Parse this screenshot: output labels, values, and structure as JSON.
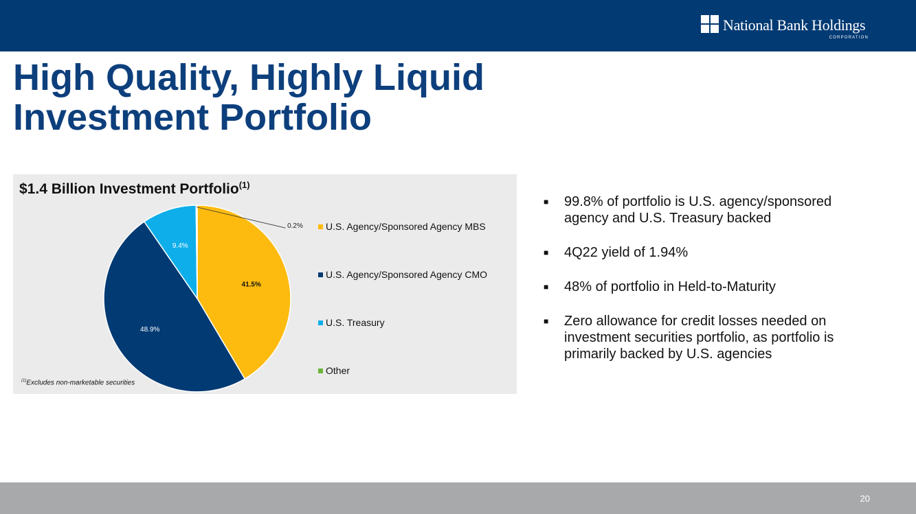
{
  "header": {
    "logo_name": "National Bank Holdings",
    "logo_sub": "CORPORATION"
  },
  "title": {
    "line1": "High Quality, Highly Liquid",
    "line2": "Investment Portfolio"
  },
  "chart_data": {
    "type": "pie",
    "title": "$1.4 Billion Investment Portfolio",
    "title_superscript": "(1)",
    "categories": [
      "U.S. Agency/Sponsored Agency MBS",
      "U.S. Agency/Sponsored Agency CMO",
      "U.S. Treasury",
      "Other"
    ],
    "values": [
      41.5,
      48.9,
      9.4,
      0.2
    ],
    "labels": [
      "41.5%",
      "48.9%",
      "9.4%",
      "0.2%"
    ],
    "colors": [
      "#fdbb0f",
      "#023a73",
      "#0eaeea",
      "#6bb33a"
    ],
    "legend_position": "right"
  },
  "footnote": {
    "marker": "(1)",
    "text": "Excludes non-marketable securities"
  },
  "bullets": [
    "99.8% of portfolio is U.S. agency/sponsored agency and U.S. Treasury backed",
    "4Q22 yield of 1.94%",
    "48% of portfolio in Held-to-Maturity",
    "Zero allowance for credit losses needed on investment securities portfolio, as portfolio is primarily backed by U.S. agencies"
  ],
  "bullet_symbol": "■",
  "footer": {
    "page_number": "20"
  }
}
